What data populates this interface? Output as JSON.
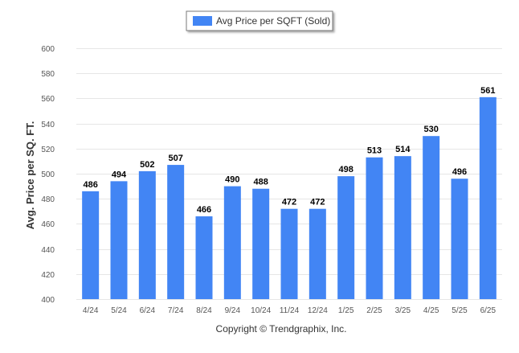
{
  "chart_data": {
    "type": "bar",
    "categories": [
      "4/24",
      "5/24",
      "6/24",
      "7/24",
      "8/24",
      "9/24",
      "10/24",
      "11/24",
      "12/24",
      "1/25",
      "2/25",
      "3/25",
      "4/25",
      "5/25",
      "6/25"
    ],
    "series": [
      {
        "name": "Avg Price per SQFT (Sold)",
        "values": [
          486,
          494,
          502,
          507,
          466,
          490,
          488,
          472,
          472,
          498,
          513,
          514,
          530,
          496,
          561
        ],
        "color": "#4285f4"
      }
    ],
    "ylabel": "Avg. Price per SQ. FT.",
    "xlabel": "",
    "ylim": [
      400,
      600
    ],
    "yticks": [
      400,
      420,
      440,
      460,
      480,
      500,
      520,
      540,
      560,
      580,
      600
    ],
    "grid": true,
    "legend": "top-center",
    "data_labels": true,
    "footer": "Copyright © Trendgraphix, Inc."
  }
}
